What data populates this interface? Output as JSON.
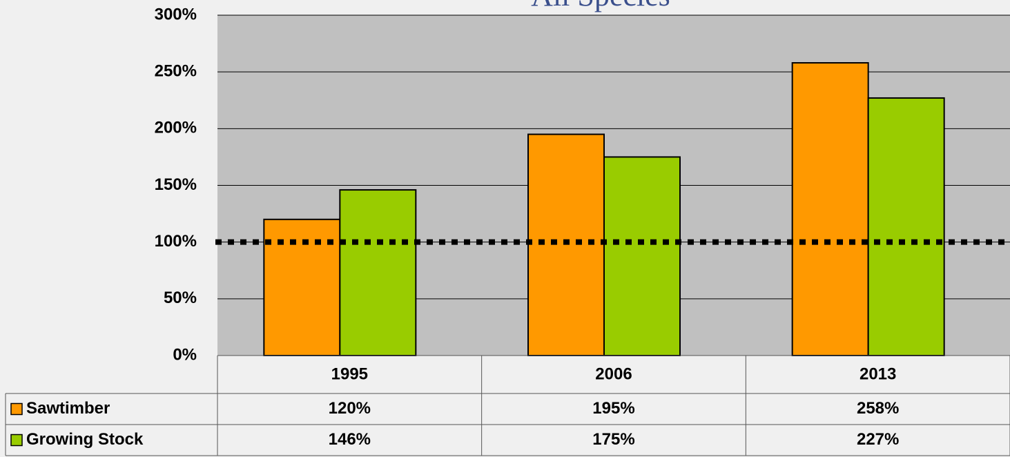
{
  "chart_data": {
    "type": "bar",
    "title": "All Species",
    "categories": [
      "1995",
      "2006",
      "2013"
    ],
    "series": [
      {
        "name": "Sawtimber",
        "color": "#ff9900",
        "values": [
          120,
          195,
          258
        ],
        "value_labels": [
          "120%",
          "195%",
          "258%"
        ]
      },
      {
        "name": "Growing Stock",
        "color": "#99cc00",
        "values": [
          146,
          175,
          227
        ],
        "value_labels": [
          "146%",
          "175%",
          "227%"
        ]
      }
    ],
    "ylim": [
      0,
      300
    ],
    "yticks": [
      {
        "value": 0,
        "label": "0%"
      },
      {
        "value": 50,
        "label": "50%"
      },
      {
        "value": 100,
        "label": "100%"
      },
      {
        "value": 150,
        "label": "150%"
      },
      {
        "value": 200,
        "label": "200%"
      },
      {
        "value": 250,
        "label": "250%"
      },
      {
        "value": 300,
        "label": "300%"
      }
    ],
    "grid": true,
    "reference_line": 100
  }
}
